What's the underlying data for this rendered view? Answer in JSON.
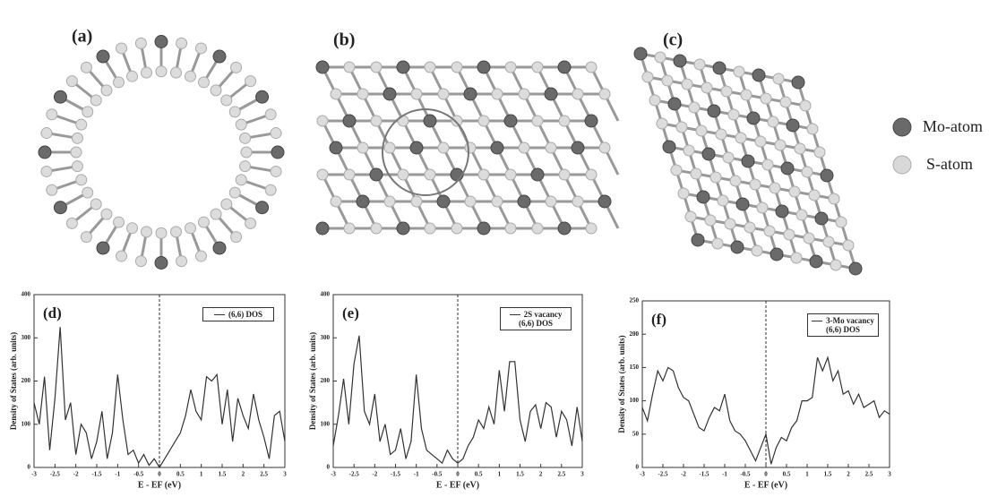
{
  "panels": [
    {
      "label": "(a)"
    },
    {
      "label": "(b)"
    },
    {
      "label": "(c)"
    }
  ],
  "atom_legend": [
    {
      "label": "Mo-atom"
    },
    {
      "label": "S-atom"
    }
  ],
  "chart_data": [
    {
      "type": "line",
      "title": "(d)",
      "xlabel": "E - EF (eV)",
      "ylabel": "Density of States (arb. units)",
      "x": [
        -3,
        -2.875,
        -2.75,
        -2.625,
        -2.5,
        -2.375,
        -2.25,
        -2.125,
        -2,
        -1.875,
        -1.75,
        -1.625,
        -1.5,
        -1.375,
        -1.25,
        -1.125,
        -1,
        -0.875,
        -0.75,
        -0.625,
        -0.5,
        -0.375,
        -0.25,
        -0.125,
        0,
        0.125,
        0.25,
        0.375,
        0.5,
        0.625,
        0.75,
        0.875,
        1,
        1.125,
        1.25,
        1.375,
        1.5,
        1.625,
        1.75,
        1.875,
        2,
        2.125,
        2.25,
        2.375,
        2.5,
        2.625,
        2.75,
        2.875,
        3
      ],
      "series": [
        {
          "name": "(6,6) DOS",
          "color": "#333333",
          "values": [
            150,
            100,
            210,
            40,
            160,
            325,
            110,
            150,
            30,
            100,
            80,
            20,
            60,
            130,
            20,
            80,
            215,
            110,
            30,
            40,
            10,
            30,
            5,
            20,
            0,
            20,
            40,
            60,
            80,
            120,
            180,
            130,
            110,
            210,
            200,
            215,
            100,
            180,
            60,
            160,
            120,
            90,
            170,
            110,
            70,
            20,
            120,
            130,
            60
          ]
        }
      ],
      "xlim": [
        -3,
        3
      ],
      "xticks": [
        -3,
        -2.5,
        -2,
        -1.5,
        -1,
        -0.5,
        0,
        0.5,
        1,
        1.5,
        2,
        2.5,
        3
      ],
      "ylim": [
        0,
        400
      ],
      "yticks": [
        0,
        100,
        200,
        300,
        400
      ],
      "vline": 0
    },
    {
      "type": "line",
      "title": "(e)",
      "xlabel": "E - EF (eV)",
      "ylabel": "Density of States (arb. units)",
      "x": [
        -3,
        -2.875,
        -2.75,
        -2.625,
        -2.5,
        -2.375,
        -2.25,
        -2.125,
        -2,
        -1.875,
        -1.75,
        -1.625,
        -1.5,
        -1.375,
        -1.25,
        -1.125,
        -1,
        -0.875,
        -0.75,
        -0.625,
        -0.5,
        -0.375,
        -0.25,
        -0.125,
        0,
        0.125,
        0.25,
        0.375,
        0.5,
        0.625,
        0.75,
        0.875,
        1,
        1.125,
        1.25,
        1.375,
        1.5,
        1.625,
        1.75,
        1.875,
        2,
        2.125,
        2.25,
        2.375,
        2.5,
        2.625,
        2.75,
        2.875,
        3
      ],
      "series": [
        {
          "name": "2S vacancy (6,6) DOS",
          "color": "#333333",
          "values": [
            50,
            120,
            205,
            100,
            240,
            305,
            130,
            100,
            170,
            60,
            100,
            30,
            40,
            90,
            20,
            60,
            215,
            90,
            40,
            30,
            20,
            10,
            40,
            20,
            10,
            20,
            50,
            70,
            110,
            90,
            140,
            100,
            225,
            130,
            245,
            245,
            110,
            60,
            130,
            145,
            90,
            150,
            140,
            70,
            130,
            110,
            50,
            140,
            60
          ]
        }
      ],
      "xlim": [
        -3,
        3
      ],
      "xticks": [
        -3,
        -2.5,
        -2,
        -1.5,
        -1,
        -0.5,
        0,
        0.5,
        1,
        1.5,
        2,
        2.5,
        3
      ],
      "ylim": [
        0,
        400
      ],
      "yticks": [
        0,
        100,
        200,
        300,
        400
      ],
      "vline": 0
    },
    {
      "type": "line",
      "title": "(f)",
      "xlabel": "E - EF (eV)",
      "ylabel": "Density of States (arb. units)",
      "x": [
        -3,
        -2.875,
        -2.75,
        -2.625,
        -2.5,
        -2.375,
        -2.25,
        -2.125,
        -2,
        -1.875,
        -1.75,
        -1.625,
        -1.5,
        -1.375,
        -1.25,
        -1.125,
        -1,
        -0.875,
        -0.75,
        -0.625,
        -0.5,
        -0.375,
        -0.25,
        -0.125,
        0,
        0.125,
        0.25,
        0.375,
        0.5,
        0.625,
        0.75,
        0.875,
        1,
        1.125,
        1.25,
        1.375,
        1.5,
        1.625,
        1.75,
        1.875,
        2,
        2.125,
        2.25,
        2.375,
        2.5,
        2.625,
        2.75,
        2.875,
        3
      ],
      "series": [
        {
          "name": "3-Mo vacancy (6,6) DOS",
          "color": "#333333",
          "values": [
            90,
            70,
            110,
            145,
            130,
            150,
            145,
            120,
            105,
            100,
            80,
            60,
            55,
            75,
            90,
            85,
            110,
            70,
            55,
            50,
            40,
            25,
            10,
            30,
            50,
            5,
            30,
            45,
            40,
            60,
            70,
            100,
            100,
            105,
            165,
            145,
            165,
            130,
            145,
            110,
            115,
            95,
            110,
            90,
            95,
            100,
            75,
            85,
            80
          ]
        }
      ],
      "xlim": [
        -3,
        3
      ],
      "xticks": [
        -3,
        -2.5,
        -2,
        -1.5,
        -1,
        -0.5,
        0,
        0.5,
        1,
        1.5,
        2,
        2.5,
        3
      ],
      "ylim": [
        0,
        250
      ],
      "yticks": [
        0,
        50,
        100,
        150,
        200,
        250
      ],
      "vline": 0
    }
  ]
}
